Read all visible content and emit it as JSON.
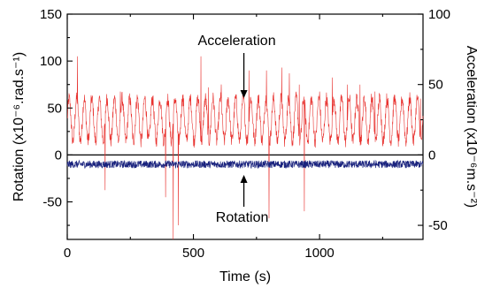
{
  "chart_data": {
    "type": "line",
    "xlabel": "Time (s)",
    "ylabel_left": "Rotation (x10⁻⁶.rad.s⁻¹)",
    "ylabel_right": "Acceleration (x10⁻⁶m.s⁻²)",
    "xlim": [
      0,
      1410
    ],
    "ylim_left": [
      -90,
      150
    ],
    "ylim_right": [
      -60,
      100
    ],
    "xticks": [
      0,
      500,
      1000
    ],
    "xtick_labels": [
      "0",
      "500",
      "1000"
    ],
    "yticks_left": [
      -50,
      0,
      50,
      100,
      150
    ],
    "ytick_labels_left": [
      "-50",
      "0",
      "50",
      "100",
      "150"
    ],
    "yticks_right": [
      -50,
      0,
      50,
      100
    ],
    "ytick_labels_right": [
      "-50",
      "0",
      "50",
      "100"
    ],
    "zero_line": true,
    "grid": false,
    "annotations": [
      {
        "text": "Acceleration",
        "points_to": "Acceleration"
      },
      {
        "text": "Rotation",
        "points_to": "Rotation"
      }
    ],
    "series": [
      {
        "name": "Acceleration",
        "axis": "right",
        "color": "#e8322f",
        "description": "periodic oscillation roughly between 10 and 40 with a ~30 s period, mean ~25, with sporadic spikes up to ~70 and down to ~-60",
        "baseline_mean": 25,
        "baseline_amplitude": 15,
        "period": 30,
        "spikes": [
          [
            40,
            70
          ],
          [
            150,
            -25
          ],
          [
            210,
            45
          ],
          [
            280,
            40
          ],
          [
            390,
            -30
          ],
          [
            420,
            -60
          ],
          [
            440,
            -50
          ],
          [
            530,
            70
          ],
          [
            560,
            48
          ],
          [
            610,
            50
          ],
          [
            720,
            60
          ],
          [
            790,
            60
          ],
          [
            800,
            -45
          ],
          [
            850,
            62
          ],
          [
            880,
            58
          ],
          [
            920,
            50
          ],
          [
            940,
            -40
          ],
          [
            1000,
            45
          ],
          [
            1050,
            55
          ],
          [
            1110,
            50
          ],
          [
            1160,
            50
          ],
          [
            1220,
            45
          ],
          [
            1300,
            40
          ],
          [
            1400,
            40
          ]
        ]
      },
      {
        "name": "Rotation",
        "axis": "left",
        "color": "#1a237e",
        "description": "noisy trace around -10 with small fluctuations of about ±4",
        "baseline_mean": -10,
        "noise_amplitude": 4
      }
    ]
  }
}
